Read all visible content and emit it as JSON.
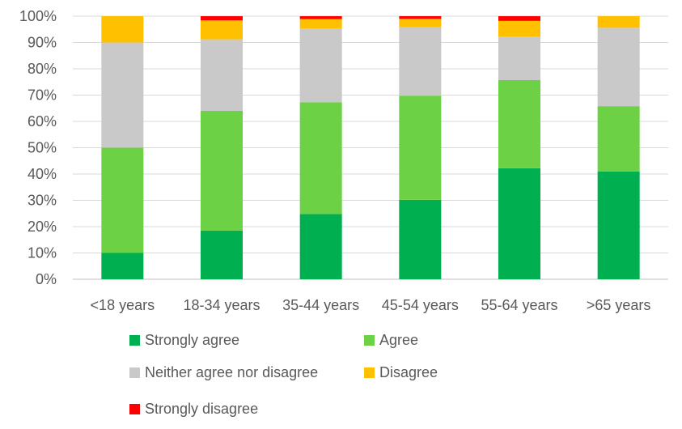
{
  "chart_data": {
    "type": "bar",
    "stacked": true,
    "categories": [
      "<18 years",
      "18-34 years",
      "35-44 years",
      "45-54 years",
      "55-64 years",
      ">65 years"
    ],
    "series": [
      {
        "name": "Strongly agree",
        "color": "#00b050",
        "values": [
          10,
          18.5,
          24.8,
          30.2,
          42.2,
          41.0
        ]
      },
      {
        "name": "Agree",
        "color": "#6dd146",
        "values": [
          40,
          45.5,
          42.5,
          39.6,
          33.5,
          24.8
        ]
      },
      {
        "name": "Neither agree nor disagree",
        "color": "#c9c9c9",
        "values": [
          40,
          27.2,
          28.0,
          26.2,
          16.5,
          29.8
        ]
      },
      {
        "name": "Disagree",
        "color": "#ffc000",
        "values": [
          10,
          7.2,
          3.6,
          3.0,
          6.0,
          4.4
        ]
      },
      {
        "name": "Strongly disagree",
        "color": "#ff0000",
        "values": [
          0,
          1.6,
          1.1,
          1.0,
          1.8,
          0
        ]
      }
    ],
    "yticks": [
      "0%",
      "10%",
      "20%",
      "30%",
      "40%",
      "50%",
      "60%",
      "70%",
      "80%",
      "90%",
      "100%"
    ],
    "ylim": [
      0,
      100
    ],
    "grid": true,
    "legend_position": "bottom"
  }
}
